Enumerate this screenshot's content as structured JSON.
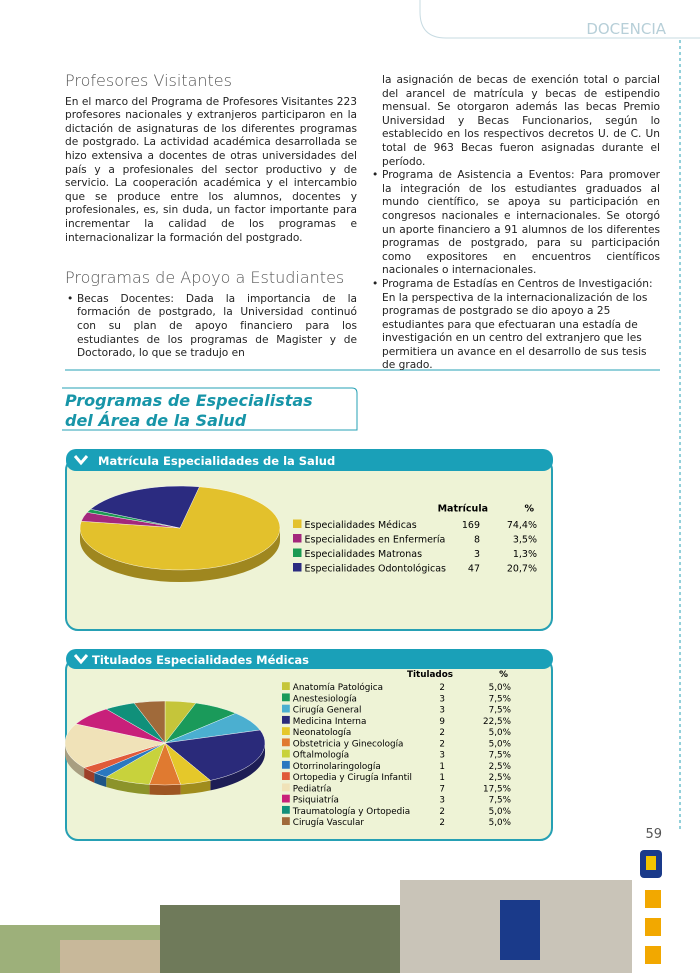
{
  "header": {
    "section": "DOCENCIA",
    "page_number": "59"
  },
  "profesores": {
    "title": "Profesores Visitantes",
    "text": "En el marco del Programa de Profesores Visitantes 223 profesores nacionales y extranjeros participaron en la dictación de asignaturas de los diferentes programas de postgrado. La actividad académica desarrollada se hizo extensiva a docentes de otras universidades del país y a profesionales del sector productivo y de servicio. La cooperación académica y el intercambio que se produce entre los alumnos, docentes y profesionales, es, sin duda, un factor importante para incrementar la calidad de los programas e internacionalizar la formación del postgrado."
  },
  "apoyo": {
    "title": "Programas de Apoyo a Estudiantes",
    "becas": [
      "Becas Docentes: Dada la importancia de la formación de postgrado, la Universidad continuó con su plan de apoyo financiero para los estudiantes de los programas de Magister y de Doctorado, lo que se tradujo en",
      "la asignación de becas de exención total o parcial del arancel de matrícula y becas de estipendio mensual. Se otorgaron además las becas Premio Universidad y Becas Funcionarios, según lo establecido en los respectivos decretos U. de C. Un total de 963 Becas fueron asignadas durante el período."
    ],
    "eventos": "Programa de Asistencia a Eventos: Para promover la integración de los estudiantes graduados al mundo científico, se apoya su participación en congresos nacionales e internacionales. Se otorgó un aporte financiero a 91 alumnos de los diferentes programas de postgrado, para su participación como expositores en encuentros científicos nacionales o internacionales.",
    "estadias": "Programa de Estadías en Centros de Investigación: En la perspectiva de la internacionalización de los programas de postgrado se dio apoyo a 25 estudiantes para que efectuaran una estadía de investigación en un centro del extranjero que les permitiera un avance en el desarrollo de sus tesis de grado."
  },
  "especialistas": {
    "title_line1": "Programas de Especialistas",
    "title_line2": "del Área de la Salud"
  },
  "matricula": {
    "title": "Matrícula Especialidades de la Salud",
    "col_count": "Matrícula",
    "col_percent": "%",
    "rows": [
      {
        "label": "Especialidades Médicas",
        "count": 169,
        "percent": {
          "value": 74.4,
          "label": "74,4%"
        },
        "color": "#e3c12c"
      },
      {
        "label": "Especialidades en Enfermería",
        "count": 8,
        "percent": {
          "value": 3.5,
          "label": "3,5%"
        },
        "color": "#a3287c"
      },
      {
        "label": "Especialidades Matronas",
        "count": 3,
        "percent": {
          "value": 1.3,
          "label": "1,3%"
        },
        "color": "#1b9a52"
      },
      {
        "label": "Especialidades Odontológicas",
        "count": 47,
        "percent": {
          "value": 20.7,
          "label": "20,7%"
        },
        "color": "#2b2b80"
      }
    ]
  },
  "titulados": {
    "title": "Titulados Especialidades Médicas",
    "col_count": "Titulados",
    "col_percent": "%",
    "rows": [
      {
        "label": "Anatomía Patológica",
        "count": 2,
        "percent": {
          "value": 5,
          "label": "5,0%"
        },
        "color": "#c5c53a"
      },
      {
        "label": "Anestesiología",
        "count": 3,
        "percent": {
          "value": 7.5,
          "label": "7,5%"
        },
        "color": "#1a9a5a"
      },
      {
        "label": "Cirugía General",
        "count": 3,
        "percent": {
          "value": 7.5,
          "label": "7,5%"
        },
        "color": "#4bafd0"
      },
      {
        "label": "Medicina Interna",
        "count": 9,
        "percent": {
          "value": 22.5,
          "label": "22,5%"
        },
        "color": "#2a2a7a"
      },
      {
        "label": "Neonatología",
        "count": 2,
        "percent": {
          "value": 5,
          "label": "5,0%"
        },
        "color": "#e5c82a"
      },
      {
        "label": "Obstetricia y Ginecología",
        "count": 2,
        "percent": {
          "value": 5,
          "label": "5,0%"
        },
        "color": "#e07a30"
      },
      {
        "label": "Oftalmología",
        "count": 3,
        "percent": {
          "value": 7.5,
          "label": "7,5%"
        },
        "color": "#c8d23c"
      },
      {
        "label": "Otorrinolaringología",
        "count": 1,
        "percent": {
          "value": 2.5,
          "label": "2,5%"
        },
        "color": "#2a78c0"
      },
      {
        "label": "Ortopedia y Cirugía Infantil",
        "count": 1,
        "percent": {
          "value": 2.5,
          "label": "2,5%"
        },
        "color": "#e05a3a"
      },
      {
        "label": "Pediatría",
        "count": 7,
        "percent": {
          "value": 17.5,
          "label": "17,5%"
        },
        "color": "#f0e2b8"
      },
      {
        "label": "Psiquiatría",
        "count": 3,
        "percent": {
          "value": 7.5,
          "label": "7,5%"
        },
        "color": "#c8207a"
      },
      {
        "label": "Traumatología y Ortopedia",
        "count": 2,
        "percent": {
          "value": 5,
          "label": "5,0%"
        },
        "color": "#10907a"
      },
      {
        "label": "Cirugía Vascular",
        "count": 2,
        "percent": {
          "value": 5,
          "label": "5,0%"
        },
        "color": "#a06a3a"
      }
    ]
  }
}
